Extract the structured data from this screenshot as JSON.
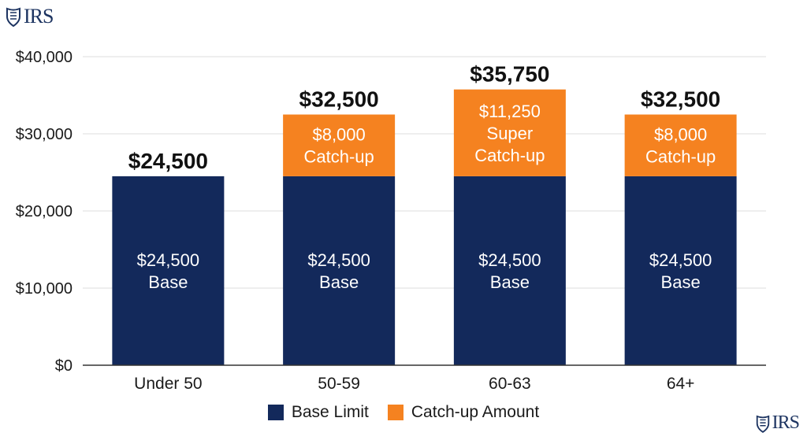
{
  "branding": {
    "top_logo_text": "IRS",
    "bottom_logo_text": "IRS",
    "logo_icon": "eagle-seal-icon",
    "logo_color": "#1d3461"
  },
  "chart_data": {
    "type": "bar",
    "stacked": true,
    "categories": [
      "Under 50",
      "50-59",
      "60-63",
      "64+"
    ],
    "series": [
      {
        "name": "Base Limit",
        "color": "#13295b",
        "values": [
          24500,
          24500,
          24500,
          24500
        ],
        "bar_labels": [
          [
            "$24,500",
            "Base"
          ],
          [
            "$24,500",
            "Base"
          ],
          [
            "$24,500",
            "Base"
          ],
          [
            "$24,500",
            "Base"
          ]
        ]
      },
      {
        "name": "Catch-up Amount",
        "color": "#f58220",
        "values": [
          0,
          8000,
          11250,
          8000
        ],
        "bar_labels": [
          [],
          [
            "$8,000",
            "Catch-up"
          ],
          [
            "$11,250",
            "Super",
            "Catch-up"
          ],
          [
            "$8,000",
            "Catch-up"
          ]
        ]
      }
    ],
    "totals": [
      "$24,500",
      "$32,500",
      "$35,750",
      "$32,500"
    ],
    "title": "",
    "xlabel": "",
    "ylabel": "",
    "ylim": [
      0,
      40000
    ],
    "yticks": [
      0,
      10000,
      20000,
      30000,
      40000
    ],
    "ytick_labels": [
      "$0",
      "$10,000",
      "$20,000",
      "$30,000",
      "$40,000"
    ],
    "grid": true,
    "legend_position": "bottom-center"
  }
}
